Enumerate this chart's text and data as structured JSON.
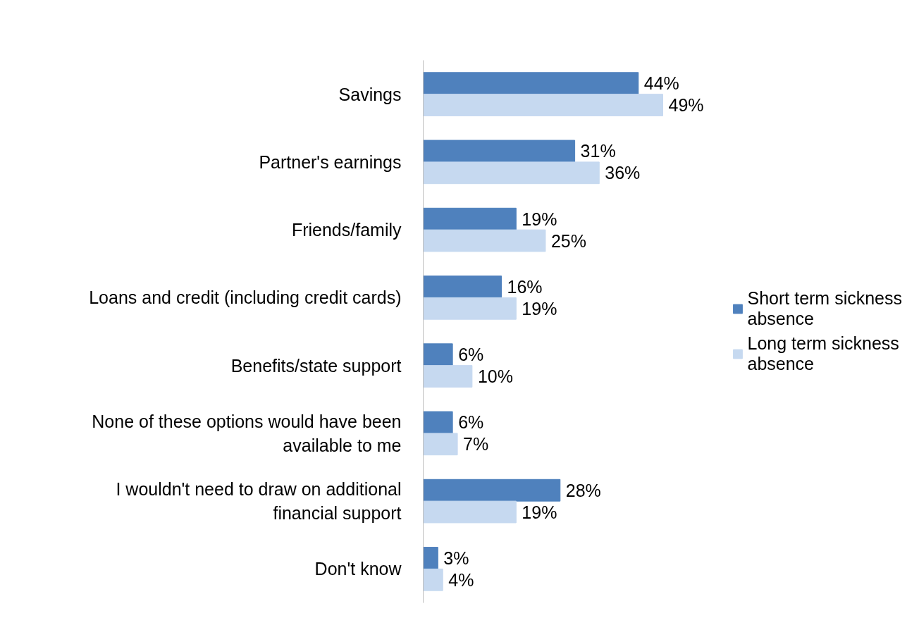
{
  "chart_data": {
    "type": "bar",
    "orientation": "horizontal",
    "legend": "right",
    "grid": false,
    "categories": [
      "Savings",
      "Partner's earnings",
      "Friends/family",
      "Loans and credit (including credit cards)",
      "Benefits/state support",
      "None of these options would have been available to me",
      "I wouldn't need to draw on additional financial support",
      "Don't know"
    ],
    "series": [
      {
        "name": "Short term sickness absence",
        "color": "#4f81bd",
        "values": [
          44,
          31,
          19,
          16,
          6,
          6,
          28,
          3
        ],
        "value_labels": [
          "44%",
          "31%",
          "19%",
          "16%",
          "6%",
          "6%",
          "28%",
          "3%"
        ]
      },
      {
        "name": "Long term sickness absence",
        "color": "#c6d9f0",
        "values": [
          49,
          36,
          25,
          19,
          10,
          7,
          19,
          4
        ],
        "value_labels": [
          "49%",
          "36%",
          "25%",
          "19%",
          "10%",
          "7%",
          "19%",
          "4%"
        ]
      }
    ]
  }
}
